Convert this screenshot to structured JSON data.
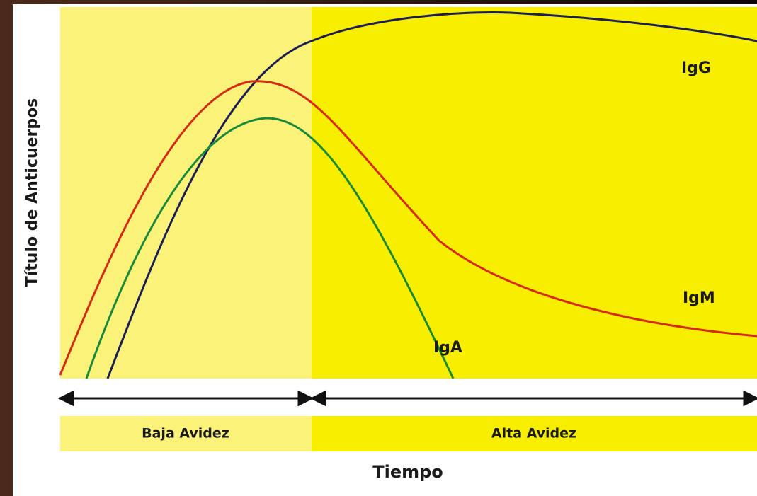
{
  "y_axis_label": "Título de Anticuerpos",
  "x_axis_label": "Tiempo",
  "curves": [
    {
      "label": "IgG"
    },
    {
      "label": "IgM"
    },
    {
      "label": "IgA"
    }
  ],
  "phases": [
    {
      "label": "Baja Avidez"
    },
    {
      "label": "Alta Avidez"
    }
  ]
}
